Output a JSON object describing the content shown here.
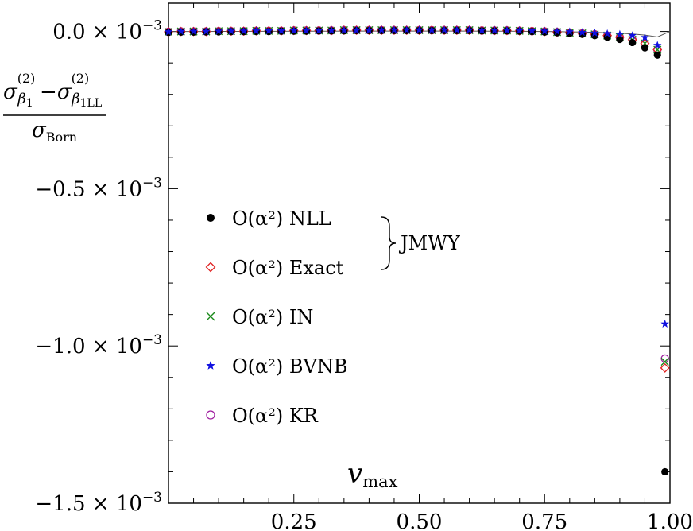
{
  "chart_data": {
    "type": "scatter",
    "title": "",
    "xlabel": "v_max",
    "ylabel": "(σ_β1^(2) − σ_β1LL^(2)) / σ_Born",
    "xlim": [
      0.0,
      1.0
    ],
    "ylim": [
      -0.0015,
      9e-05
    ],
    "x_ticks": [
      0.25,
      0.5,
      0.75,
      1.0
    ],
    "x_tick_labels": [
      "0.25",
      "0.50",
      "0.75",
      "1.00"
    ],
    "y_ticks": [
      0.0,
      -0.0005,
      -0.001,
      -0.0015
    ],
    "y_tick_labels": [
      {
        "mantissa": "0.0",
        "exp": "−3"
      },
      {
        "mantissa": "−0.5",
        "exp": "−3"
      },
      {
        "mantissa": "−1.0",
        "exp": "−3"
      },
      {
        "mantissa": "−1.5",
        "exp": "−3"
      }
    ],
    "xlabel_parts": {
      "main": "v",
      "sub": "max"
    },
    "ylabel_parts": {
      "num_left": "σ",
      "num_left_sup": "(2)",
      "num_left_sub": "β",
      "num_left_sub_sub": "1",
      "minus": "−",
      "num_right": "σ",
      "num_right_sup": "(2)",
      "num_right_sub": "β",
      "num_right_sub_sub": "1LL",
      "den": "σ",
      "den_sub": "Born"
    },
    "x": [
      0.0,
      0.025,
      0.05,
      0.075,
      0.1,
      0.125,
      0.15,
      0.175,
      0.2,
      0.225,
      0.25,
      0.275,
      0.3,
      0.325,
      0.35,
      0.375,
      0.4,
      0.425,
      0.45,
      0.475,
      0.5,
      0.525,
      0.55,
      0.575,
      0.6,
      0.625,
      0.65,
      0.675,
      0.7,
      0.725,
      0.75,
      0.775,
      0.8,
      0.825,
      0.85,
      0.875,
      0.9,
      0.925,
      0.95,
      0.975,
      0.99
    ],
    "series": [
      {
        "name": "NLL",
        "marker": "filled-circle",
        "color": "#000000",
        "values": [
          -3e-06,
          -2e-06,
          -2e-06,
          -1e-06,
          -1e-06,
          0.0,
          0.0,
          0.0,
          0.0,
          1e-06,
          1e-06,
          1e-06,
          2e-06,
          2e-06,
          2e-06,
          3e-06,
          3e-06,
          3e-06,
          3e-06,
          3e-06,
          3e-06,
          3e-06,
          3e-06,
          3e-06,
          3e-06,
          2e-06,
          2e-06,
          2e-06,
          1e-06,
          0.0,
          -2e-06,
          -4e-06,
          -6e-06,
          -9e-06,
          -1.3e-05,
          -1.8e-05,
          -2.5e-05,
          -3.5e-05,
          -5.2e-05,
          -7.5e-05,
          -0.0014
        ]
      },
      {
        "name": "Exact",
        "marker": "open-diamond",
        "color": "#e02020",
        "values": [
          -1e-06,
          0.0,
          0.0,
          0.0,
          1e-06,
          1e-06,
          1e-06,
          2e-06,
          2e-06,
          2e-06,
          3e-06,
          3e-06,
          3e-06,
          3e-06,
          4e-06,
          4e-06,
          4e-06,
          4e-06,
          4e-06,
          4e-06,
          4e-06,
          4e-06,
          4e-06,
          4e-06,
          4e-06,
          3e-06,
          3e-06,
          3e-06,
          2e-06,
          1e-06,
          0.0,
          -2e-06,
          -4e-06,
          -6e-06,
          -9e-06,
          -1.3e-05,
          -1.8e-05,
          -2.6e-05,
          -3.8e-05,
          -5.8e-05,
          -0.00107
        ]
      },
      {
        "name": "IN",
        "marker": "cross",
        "color": "#1a8a1a",
        "values": [
          -1e-06,
          0.0,
          0.0,
          0.0,
          1e-06,
          1e-06,
          1e-06,
          2e-06,
          2e-06,
          2e-06,
          3e-06,
          3e-06,
          3e-06,
          3e-06,
          4e-06,
          4e-06,
          4e-06,
          4e-06,
          4e-06,
          4e-06,
          4e-06,
          4e-06,
          4e-06,
          4e-06,
          4e-06,
          3e-06,
          3e-06,
          3e-06,
          2e-06,
          1e-06,
          0.0,
          -2e-06,
          -4e-06,
          -6e-06,
          -9e-06,
          -1.3e-05,
          -1.8e-05,
          -2.6e-05,
          -3.8e-05,
          -5.8e-05,
          -0.00105
        ]
      },
      {
        "name": "BVNB",
        "marker": "star",
        "color": "#1010e0",
        "values": [
          -1e-06,
          0.0,
          0.0,
          0.0,
          1e-06,
          1e-06,
          1e-06,
          2e-06,
          2e-06,
          2e-06,
          3e-06,
          3e-06,
          3e-06,
          4e-06,
          4e-06,
          4e-06,
          4e-06,
          5e-06,
          5e-06,
          5e-06,
          5e-06,
          5e-06,
          5e-06,
          5e-06,
          5e-06,
          4e-06,
          4e-06,
          4e-06,
          3e-06,
          2e-06,
          1e-06,
          0.0,
          -1e-06,
          -3e-06,
          -5e-06,
          -7e-06,
          -9e-06,
          -1.3e-05,
          -1.9e-05,
          -4.4e-05,
          -0.00093
        ]
      },
      {
        "name": "KR",
        "marker": "open-circle",
        "color": "#a020a0",
        "values": [
          -1e-06,
          0.0,
          0.0,
          0.0,
          1e-06,
          1e-06,
          1e-06,
          2e-06,
          2e-06,
          2e-06,
          3e-06,
          3e-06,
          3e-06,
          3e-06,
          4e-06,
          4e-06,
          4e-06,
          4e-06,
          4e-06,
          4e-06,
          4e-06,
          4e-06,
          4e-06,
          4e-06,
          4e-06,
          3e-06,
          3e-06,
          3e-06,
          2e-06,
          1e-06,
          0.0,
          -2e-06,
          -4e-06,
          -6e-06,
          -9e-06,
          -1.3e-05,
          -1.8e-05,
          -2.6e-05,
          -3.8e-05,
          -5.8e-05,
          -0.00104
        ]
      }
    ],
    "reference_curve_name": "thin line near zero",
    "legend": {
      "placement": "inside-left",
      "entries": [
        {
          "prefix": "O(α²)",
          "label": "NLL"
        },
        {
          "prefix": "O(α²)",
          "label": "Exact"
        },
        {
          "prefix": "O(α²)",
          "label": "IN"
        },
        {
          "prefix": "O(α²)",
          "label": "BVNB"
        },
        {
          "prefix": "O(α²)",
          "label": "KR"
        }
      ],
      "brace_label": "JMWY"
    },
    "grid": false
  }
}
